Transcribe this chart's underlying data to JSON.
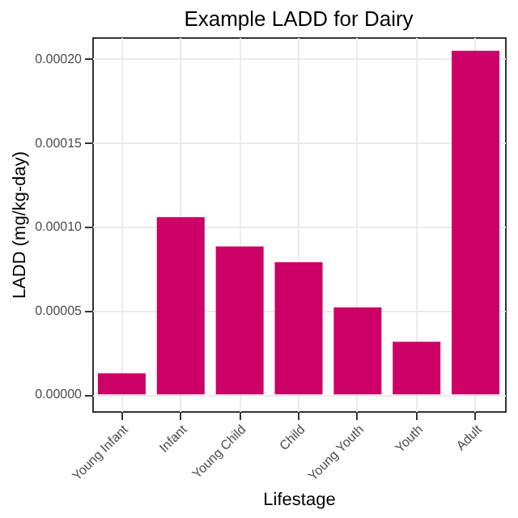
{
  "chart_data": {
    "type": "bar",
    "title": "Example LADD for Dairy",
    "xlabel": "Lifestage",
    "ylabel": "LADD (mg/kg-day)",
    "categories": [
      "Young Infant",
      "Infant",
      "Young Child",
      "Child",
      "Young Youth",
      "Youth",
      "Adult"
    ],
    "values": [
      1.26e-05,
      0.0001057,
      8.82e-05,
      7.88e-05,
      5.19e-05,
      3.14e-05,
      0.0002049
    ],
    "color": "#cc0066",
    "ylim": [
      -1e-05,
      0.000213
    ],
    "yticks": [
      {
        "value": 0,
        "label": "0.00000"
      },
      {
        "value": 5e-05,
        "label": "0.00005"
      },
      {
        "value": 0.0001,
        "label": "0.00010"
      },
      {
        "value": 0.00015,
        "label": "0.00015"
      },
      {
        "value": 0.0002,
        "label": "0.00020"
      }
    ],
    "grid": true
  }
}
